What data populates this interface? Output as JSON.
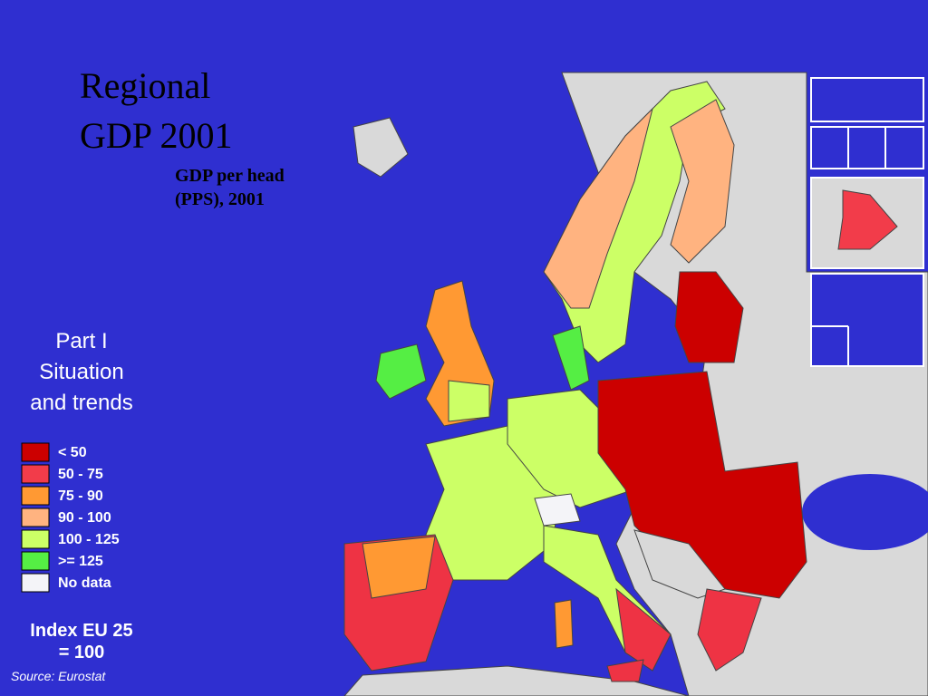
{
  "title": [
    "Regional",
    "GDP 2001"
  ],
  "subtitle": [
    "GDP per head",
    "(PPS), 2001"
  ],
  "section": [
    "Part I",
    "Situation",
    "and trends"
  ],
  "legend": [
    {
      "label": "< 50",
      "color": "#cc0000"
    },
    {
      "label": "50 - 75",
      "color": "#f23c4a"
    },
    {
      "label": "75 - 90",
      "color": "#ff9933"
    },
    {
      "label": "90 - 100",
      "color": "#ffb380"
    },
    {
      "label": "100 - 125",
      "color": "#ccff66"
    },
    {
      "label": ">= 125",
      "color": "#55ee44"
    },
    {
      "label": "No data",
      "color": "#f4f4f8"
    }
  ],
  "index_note": [
    "Index EU 25",
    "= 100"
  ],
  "source": "Source: Eurostat"
}
